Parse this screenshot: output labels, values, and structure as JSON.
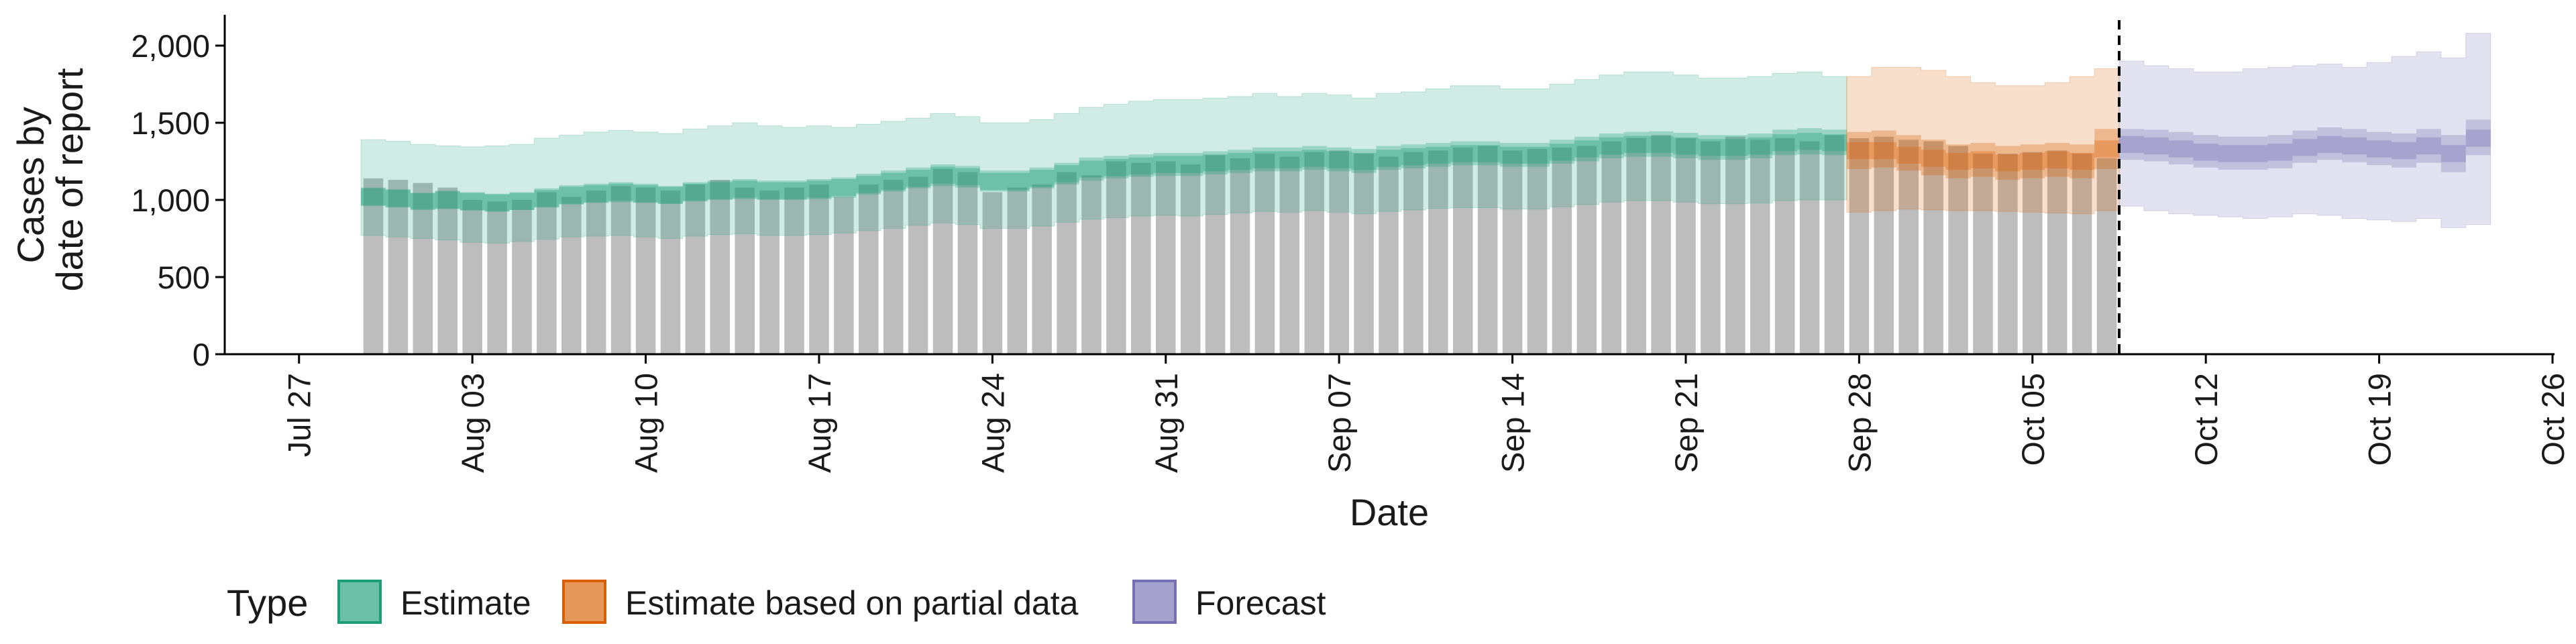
{
  "chart_data": {
    "type": "bar",
    "title": "",
    "xlabel": "Date",
    "ylabel": "Cases by\ndate of report",
    "ylim": [
      0,
      2200
    ],
    "y_ticks": [
      0,
      500,
      1000,
      1500,
      2000
    ],
    "y_tick_labels": [
      "0",
      "500",
      "1,000",
      "1,500",
      "2,000"
    ],
    "x_range": [
      "2020-07-24",
      "2020-10-26"
    ],
    "x_ticks": [
      "2020-07-27",
      "2020-08-03",
      "2020-08-10",
      "2020-08-17",
      "2020-08-24",
      "2020-08-31",
      "2020-09-07",
      "2020-09-14",
      "2020-09-21",
      "2020-09-28",
      "2020-10-05",
      "2020-10-12",
      "2020-10-19",
      "2020-10-26"
    ],
    "x_tick_labels": [
      "Jul 27",
      "Aug 03",
      "Aug 10",
      "Aug 17",
      "Aug 24",
      "Aug 31",
      "Sep 07",
      "Sep 14",
      "Sep 21",
      "Sep 28",
      "Oct 05",
      "Oct 12",
      "Oct 19",
      "Oct 26"
    ],
    "grid": false,
    "legend_position": "bottom",
    "legend_title": "Type",
    "forecast_start": "2020-10-08",
    "reported_cases": {
      "dates": [
        "2020-07-30",
        "2020-07-31",
        "2020-08-01",
        "2020-08-02",
        "2020-08-03",
        "2020-08-04",
        "2020-08-05",
        "2020-08-06",
        "2020-08-07",
        "2020-08-08",
        "2020-08-09",
        "2020-08-10",
        "2020-08-11",
        "2020-08-12",
        "2020-08-13",
        "2020-08-14",
        "2020-08-15",
        "2020-08-16",
        "2020-08-17",
        "2020-08-18",
        "2020-08-19",
        "2020-08-20",
        "2020-08-21",
        "2020-08-22",
        "2020-08-23",
        "2020-08-24",
        "2020-08-25",
        "2020-08-26",
        "2020-08-27",
        "2020-08-28",
        "2020-08-29",
        "2020-08-30",
        "2020-08-31",
        "2020-09-01",
        "2020-09-02",
        "2020-09-03",
        "2020-09-04",
        "2020-09-05",
        "2020-09-06",
        "2020-09-07",
        "2020-09-08",
        "2020-09-09",
        "2020-09-10",
        "2020-09-11",
        "2020-09-12",
        "2020-09-13",
        "2020-09-14",
        "2020-09-15",
        "2020-09-16",
        "2020-09-17",
        "2020-09-18",
        "2020-09-19",
        "2020-09-20",
        "2020-09-21",
        "2020-09-22",
        "2020-09-23",
        "2020-09-24",
        "2020-09-25",
        "2020-09-26",
        "2020-09-27",
        "2020-09-28",
        "2020-09-29",
        "2020-09-30",
        "2020-10-01",
        "2020-10-02",
        "2020-10-03",
        "2020-10-04",
        "2020-10-05",
        "2020-10-06",
        "2020-10-07",
        "2020-10-08"
      ],
      "values": [
        1140,
        1130,
        1110,
        1080,
        1000,
        990,
        1000,
        1050,
        1020,
        1060,
        1090,
        1080,
        1060,
        1100,
        1130,
        1080,
        1060,
        1080,
        1100,
        1020,
        1100,
        1130,
        1150,
        1200,
        1180,
        1050,
        1080,
        1100,
        1180,
        1160,
        1250,
        1240,
        1250,
        1230,
        1290,
        1270,
        1300,
        1280,
        1310,
        1320,
        1300,
        1280,
        1310,
        1320,
        1340,
        1350,
        1320,
        1330,
        1340,
        1350,
        1380,
        1400,
        1420,
        1400,
        1380,
        1410,
        1390,
        1400,
        1380,
        1420,
        1400,
        1410,
        1390,
        1380,
        1350,
        1300,
        1300,
        1310,
        1320,
        1300,
        1270
      ]
    },
    "series": [
      {
        "name": "Estimate",
        "color": "#1b9e77",
        "dates": [
          "2020-07-30",
          "2020-07-31",
          "2020-08-01",
          "2020-08-02",
          "2020-08-03",
          "2020-08-04",
          "2020-08-05",
          "2020-08-06",
          "2020-08-07",
          "2020-08-08",
          "2020-08-09",
          "2020-08-10",
          "2020-08-11",
          "2020-08-12",
          "2020-08-13",
          "2020-08-14",
          "2020-08-15",
          "2020-08-16",
          "2020-08-17",
          "2020-08-18",
          "2020-08-19",
          "2020-08-20",
          "2020-08-21",
          "2020-08-22",
          "2020-08-23",
          "2020-08-24",
          "2020-08-25",
          "2020-08-26",
          "2020-08-27",
          "2020-08-28",
          "2020-08-29",
          "2020-08-30",
          "2020-08-31",
          "2020-09-01",
          "2020-09-02",
          "2020-09-03",
          "2020-09-04",
          "2020-09-05",
          "2020-09-06",
          "2020-09-07",
          "2020-09-08",
          "2020-09-09",
          "2020-09-10",
          "2020-09-11",
          "2020-09-12",
          "2020-09-13",
          "2020-09-14",
          "2020-09-15",
          "2020-09-16",
          "2020-09-17",
          "2020-09-18",
          "2020-09-19",
          "2020-09-20",
          "2020-09-21",
          "2020-09-22",
          "2020-09-23",
          "2020-09-24",
          "2020-09-25",
          "2020-09-26",
          "2020-09-27"
        ],
        "median": [
          1020,
          1010,
          990,
          1000,
          990,
          980,
          990,
          1010,
          1030,
          1040,
          1050,
          1040,
          1030,
          1050,
          1060,
          1070,
          1060,
          1060,
          1070,
          1080,
          1100,
          1120,
          1140,
          1160,
          1150,
          1120,
          1120,
          1140,
          1170,
          1200,
          1210,
          1220,
          1230,
          1230,
          1240,
          1250,
          1260,
          1260,
          1270,
          1260,
          1250,
          1270,
          1280,
          1290,
          1300,
          1300,
          1290,
          1290,
          1310,
          1330,
          1350,
          1360,
          1360,
          1350,
          1340,
          1340,
          1350,
          1370,
          1380,
          1370
        ],
        "lower_50": [
          960,
          950,
          940,
          940,
          930,
          925,
          935,
          950,
          970,
          980,
          985,
          980,
          975,
          990,
          1000,
          1005,
          1000,
          1000,
          1005,
          1015,
          1035,
          1055,
          1075,
          1090,
          1080,
          1055,
          1055,
          1075,
          1100,
          1125,
          1140,
          1150,
          1155,
          1155,
          1165,
          1175,
          1185,
          1185,
          1195,
          1185,
          1175,
          1195,
          1205,
          1215,
          1225,
          1225,
          1215,
          1215,
          1235,
          1250,
          1270,
          1280,
          1280,
          1270,
          1260,
          1260,
          1270,
          1290,
          1295,
          1290
        ],
        "upper_50": [
          1080,
          1070,
          1045,
          1060,
          1050,
          1040,
          1050,
          1075,
          1095,
          1105,
          1115,
          1105,
          1090,
          1115,
          1125,
          1135,
          1125,
          1125,
          1135,
          1145,
          1170,
          1190,
          1210,
          1230,
          1220,
          1190,
          1190,
          1210,
          1240,
          1275,
          1285,
          1295,
          1305,
          1305,
          1315,
          1325,
          1340,
          1340,
          1350,
          1340,
          1330,
          1350,
          1360,
          1370,
          1380,
          1380,
          1370,
          1370,
          1390,
          1410,
          1430,
          1440,
          1445,
          1435,
          1420,
          1420,
          1430,
          1455,
          1465,
          1455
        ],
        "lower_90": [
          770,
          760,
          750,
          740,
          725,
          720,
          730,
          745,
          760,
          765,
          770,
          760,
          750,
          765,
          775,
          780,
          770,
          770,
          775,
          785,
          800,
          815,
          835,
          850,
          840,
          815,
          815,
          830,
          855,
          875,
          885,
          895,
          900,
          895,
          905,
          915,
          925,
          920,
          930,
          920,
          910,
          925,
          935,
          945,
          950,
          950,
          940,
          940,
          955,
          970,
          985,
          995,
          995,
          985,
          975,
          975,
          980,
          995,
          1000,
          1000
        ],
        "upper_90": [
          1390,
          1380,
          1360,
          1350,
          1345,
          1350,
          1360,
          1400,
          1420,
          1440,
          1450,
          1440,
          1430,
          1460,
          1480,
          1500,
          1480,
          1470,
          1480,
          1470,
          1490,
          1510,
          1530,
          1560,
          1540,
          1500,
          1500,
          1520,
          1560,
          1600,
          1620,
          1640,
          1650,
          1650,
          1660,
          1670,
          1690,
          1670,
          1690,
          1680,
          1660,
          1690,
          1700,
          1720,
          1740,
          1740,
          1720,
          1720,
          1750,
          1780,
          1810,
          1830,
          1830,
          1810,
          1790,
          1790,
          1800,
          1820,
          1830,
          1800
        ]
      },
      {
        "name": "Estimate based on partial data",
        "color": "#d95f02",
        "dates": [
          "2020-09-28",
          "2020-09-29",
          "2020-09-30",
          "2020-10-01",
          "2020-10-02",
          "2020-10-03",
          "2020-10-04",
          "2020-10-05",
          "2020-10-06",
          "2020-10-07",
          "2020-10-08"
        ],
        "median": [
          1320,
          1320,
          1290,
          1270,
          1250,
          1260,
          1240,
          1250,
          1260,
          1250,
          1330
        ],
        "lower_50": [
          1200,
          1210,
          1190,
          1160,
          1140,
          1150,
          1130,
          1140,
          1150,
          1140,
          1200
        ],
        "upper_50": [
          1440,
          1450,
          1420,
          1390,
          1360,
          1370,
          1350,
          1360,
          1370,
          1360,
          1460
        ],
        "lower_90": [
          920,
          930,
          940,
          935,
          930,
          930,
          925,
          920,
          915,
          910,
          930
        ],
        "upper_90": [
          1800,
          1860,
          1860,
          1840,
          1800,
          1760,
          1740,
          1740,
          1760,
          1800,
          1850
        ]
      },
      {
        "name": "Forecast",
        "color": "#7570b3",
        "dates": [
          "2020-10-09",
          "2020-10-10",
          "2020-10-11",
          "2020-10-12",
          "2020-10-13",
          "2020-10-14",
          "2020-10-15",
          "2020-10-16",
          "2020-10-17",
          "2020-10-18",
          "2020-10-19",
          "2020-10-20",
          "2020-10-21",
          "2020-10-22",
          "2020-10-23"
        ],
        "median": [
          1360,
          1350,
          1330,
          1310,
          1300,
          1300,
          1310,
          1340,
          1360,
          1350,
          1330,
          1320,
          1350,
          1300,
          1400
        ],
        "lower_50": [
          1260,
          1250,
          1230,
          1210,
          1195,
          1195,
          1205,
          1240,
          1260,
          1245,
          1225,
          1210,
          1240,
          1180,
          1290
        ],
        "upper_50": [
          1460,
          1455,
          1440,
          1420,
          1410,
          1410,
          1420,
          1450,
          1470,
          1460,
          1440,
          1430,
          1460,
          1420,
          1520
        ],
        "lower_90": [
          960,
          930,
          910,
          900,
          890,
          880,
          890,
          910,
          900,
          880,
          870,
          860,
          880,
          820,
          840
        ],
        "upper_90": [
          1900,
          1870,
          1850,
          1830,
          1830,
          1850,
          1860,
          1870,
          1880,
          1860,
          1890,
          1930,
          1960,
          1920,
          2080
        ]
      }
    ]
  }
}
